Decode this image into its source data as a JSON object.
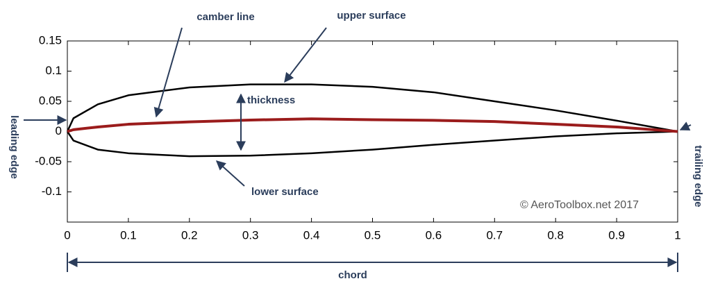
{
  "chart_data": {
    "type": "line",
    "x": [
      0,
      0.01,
      0.05,
      0.1,
      0.2,
      0.3,
      0.4,
      0.5,
      0.6,
      0.7,
      0.8,
      0.9,
      1
    ],
    "series": [
      {
        "color": "#000000",
        "values": [
          0,
          0.022,
          0.045,
          0.06,
          0.073,
          0.078,
          0.078,
          0.074,
          0.065,
          0.05,
          0.035,
          0.018,
          0
        ]
      },
      {
        "color": "#000000",
        "values": [
          0,
          -0.015,
          -0.03,
          -0.036,
          -0.041,
          -0.04,
          -0.036,
          -0.03,
          -0.022,
          -0.015,
          -0.008,
          -0.003,
          0
        ]
      },
      {
        "color": "#9b1c1c",
        "values": [
          0,
          0.003,
          0.0075,
          0.012,
          0.016,
          0.019,
          0.021,
          0.0195,
          0.0185,
          0.0165,
          0.012,
          0.0075,
          0
        ]
      }
    ],
    "xlim": [
      0,
      1
    ],
    "xticks": [
      0,
      0.1,
      0.2,
      0.3,
      0.4,
      0.5,
      0.6,
      0.7,
      0.8,
      0.9,
      1
    ],
    "ylim": [
      -0.15,
      0.15
    ],
    "yticks": [
      0.15,
      0.1,
      0.05,
      0,
      -0.05,
      -0.1
    ],
    "annotations": [
      "camber line",
      "upper surface",
      "thickness",
      "lower surface",
      "leading edge",
      "trailing edge",
      "chord",
      "© AeroToolbox.net 2017"
    ]
  }
}
